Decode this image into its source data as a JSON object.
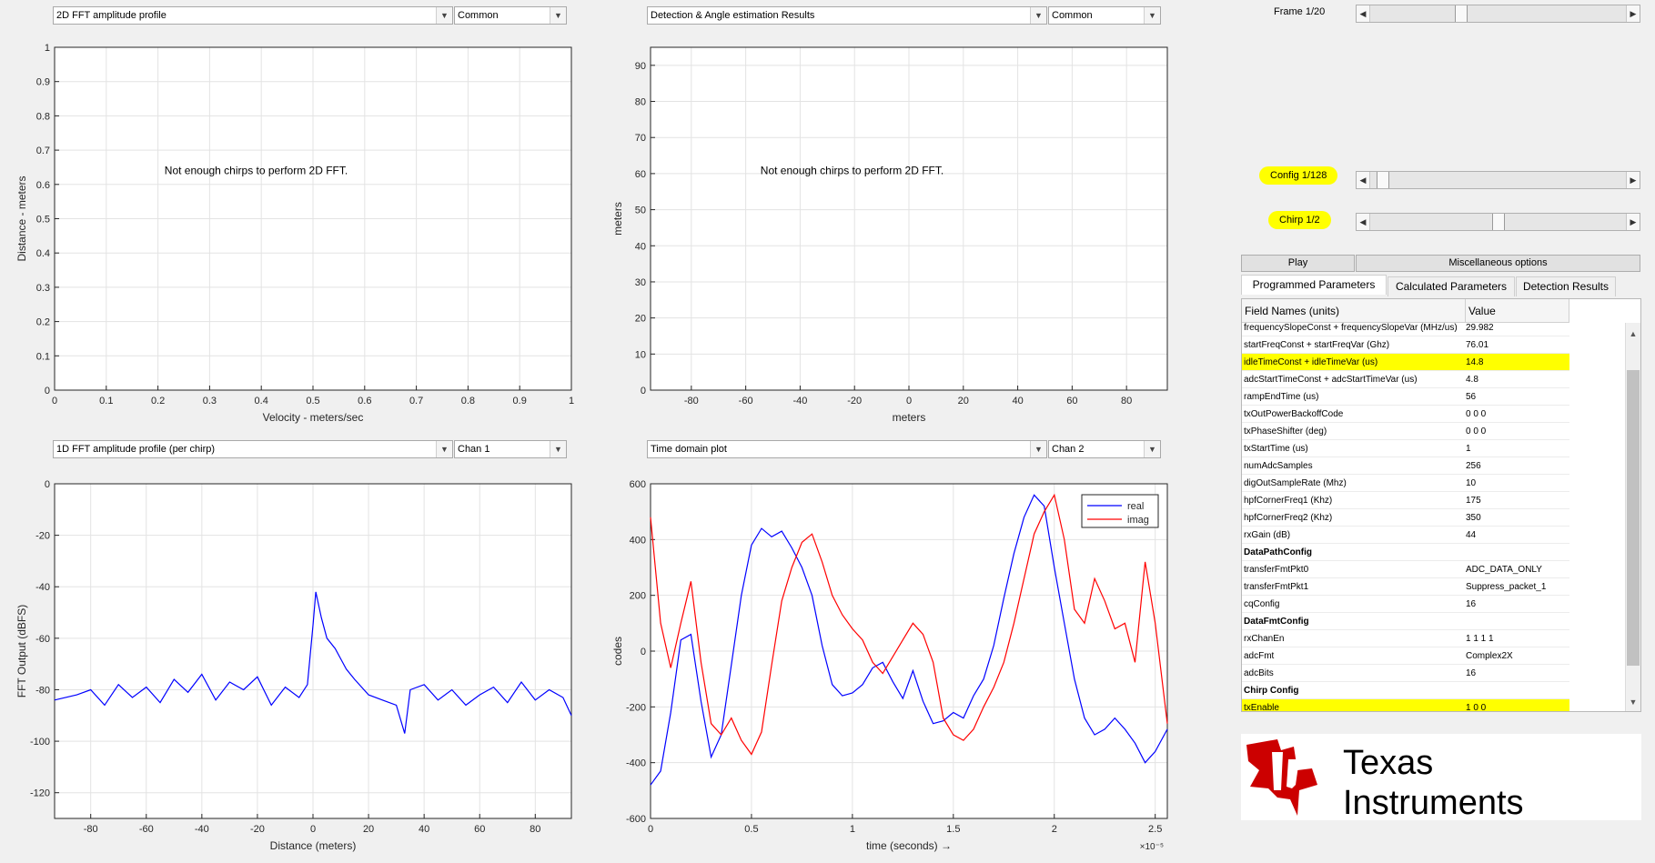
{
  "dropdowns": {
    "plot1": "2D FFT amplitude profile",
    "plot1_sub": "Common",
    "plot2": "Detection & Angle estimation Results",
    "plot2_sub": "Common",
    "plot3": "1D FFT amplitude profile (per chirp)",
    "plot3_sub": "Chan 1",
    "plot4": "Time domain plot",
    "plot4_sub": "Chan 2"
  },
  "sliders": {
    "frame_label": "Frame 1/20",
    "frame_value": 0.35,
    "config_label": "Config 1/128",
    "config_value": 0.03,
    "chirp_label": "Chirp 1/2",
    "chirp_value": 0.5
  },
  "buttons": {
    "play": "Play",
    "misc": "Miscellaneous options"
  },
  "tabs": [
    "Programmed Parameters",
    "Calculated Parameters",
    "Detection Results"
  ],
  "table": {
    "col1": "Field Names     (units)",
    "col2": "Value",
    "rows": [
      {
        "name": "frequencySlopeConst + frequencySlopeVar (MHz/us)",
        "value": "29.982",
        "section": false,
        "highlight": false
      },
      {
        "name": "startFreqConst + startFreqVar (Ghz)",
        "value": "76.01",
        "section": false,
        "highlight": false
      },
      {
        "name": "idleTimeConst + idleTimeVar (us)",
        "value": "14.8",
        "section": false,
        "highlight": true
      },
      {
        "name": "adcStartTimeConst + adcStartTimeVar (us)",
        "value": "4.8",
        "section": false,
        "highlight": false
      },
      {
        "name": "rampEndTime (us)",
        "value": "56",
        "section": false,
        "highlight": false
      },
      {
        "name": "txOutPowerBackoffCode",
        "value": "0 0 0",
        "section": false,
        "highlight": false
      },
      {
        "name": "txPhaseShifter (deg)",
        "value": "0 0 0",
        "section": false,
        "highlight": false
      },
      {
        "name": "txStartTime (us)",
        "value": "1",
        "section": false,
        "highlight": false
      },
      {
        "name": "numAdcSamples",
        "value": "256",
        "section": false,
        "highlight": false
      },
      {
        "name": "digOutSampleRate (Mhz)",
        "value": "10",
        "section": false,
        "highlight": false
      },
      {
        "name": "hpfCornerFreq1 (Khz)",
        "value": "175",
        "section": false,
        "highlight": false
      },
      {
        "name": "hpfCornerFreq2 (Khz)",
        "value": "350",
        "section": false,
        "highlight": false
      },
      {
        "name": "rxGain (dB)",
        "value": "44",
        "section": false,
        "highlight": false
      },
      {
        "name": "DataPathConfig",
        "value": "",
        "section": true,
        "highlight": false
      },
      {
        "name": "transferFmtPkt0",
        "value": "ADC_DATA_ONLY",
        "section": false,
        "highlight": false
      },
      {
        "name": "transferFmtPkt1",
        "value": "Suppress_packet_1",
        "section": false,
        "highlight": false
      },
      {
        "name": "cqConfig",
        "value": "16",
        "section": false,
        "highlight": false
      },
      {
        "name": "DataFmtConfig",
        "value": "",
        "section": true,
        "highlight": false
      },
      {
        "name": "rxChanEn",
        "value": "1 1 1 1",
        "section": false,
        "highlight": false
      },
      {
        "name": "adcFmt",
        "value": "Complex2X",
        "section": false,
        "highlight": false
      },
      {
        "name": "adcBits",
        "value": "16",
        "section": false,
        "highlight": false
      },
      {
        "name": "Chirp Config",
        "value": "",
        "section": true,
        "highlight": false
      },
      {
        "name": "txEnable",
        "value": "1 0 0",
        "section": false,
        "highlight": true
      }
    ]
  },
  "logo": {
    "text_line1": "Texas",
    "text_line2": "Instruments",
    "red": "#cc0000"
  },
  "colors": {
    "real": "#0000ff",
    "imag": "#ff0000",
    "fft": "#0000ff",
    "highlight": "#ffff00"
  },
  "chart_data": [
    {
      "type": "scatter",
      "title": "",
      "xlabel": "Velocity - meters/sec",
      "ylabel": "Distance - meters",
      "xlim": [
        0,
        1
      ],
      "ylim": [
        0,
        1
      ],
      "xticks": [
        "0",
        "0.1",
        "0.2",
        "0.3",
        "0.4",
        "0.5",
        "0.6",
        "0.7",
        "0.8",
        "0.9",
        "1"
      ],
      "yticks": [
        "0",
        "0.1",
        "0.2",
        "0.3",
        "0.4",
        "0.5",
        "0.6",
        "0.7",
        "0.8",
        "0.9",
        "1"
      ],
      "grid": true,
      "annotation": "Not enough chirps to perform 2D FFT.",
      "series": []
    },
    {
      "type": "scatter",
      "title": "",
      "xlabel": "meters",
      "ylabel": "meters",
      "xlim": [
        -95,
        95
      ],
      "ylim": [
        0,
        95
      ],
      "xticks": [
        "-80",
        "-60",
        "-40",
        "-20",
        "0",
        "20",
        "40",
        "60",
        "80"
      ],
      "yticks": [
        "0",
        "10",
        "20",
        "30",
        "40",
        "50",
        "60",
        "70",
        "80",
        "90"
      ],
      "grid": true,
      "annotation": "Not enough chirps to perform 2D FFT.",
      "series": []
    },
    {
      "type": "line",
      "title": "",
      "xlabel": "Distance (meters)",
      "ylabel": "FFT Output (dBFS)",
      "xlim": [
        -93,
        93
      ],
      "ylim": [
        -130,
        0
      ],
      "xticks": [
        "-80",
        "-60",
        "-40",
        "-20",
        "0",
        "20",
        "40",
        "60",
        "80"
      ],
      "yticks": [
        "0",
        "-20",
        "-40",
        "-60",
        "-80",
        "-100",
        "-120"
      ],
      "grid": true,
      "series": [
        {
          "x": [
            -93,
            -85,
            -80,
            -75,
            -70,
            -65,
            -60,
            -55,
            -50,
            -45,
            -40,
            -35,
            -30,
            -25,
            -20,
            -15,
            -10,
            -5,
            -2,
            0,
            1,
            3,
            5,
            8,
            10,
            12,
            15,
            20,
            25,
            30,
            33,
            35,
            40,
            45,
            50,
            55,
            60,
            65,
            70,
            75,
            80,
            85,
            90,
            93
          ],
          "values": [
            -84,
            -82,
            -80,
            -86,
            -78,
            -83,
            -79,
            -85,
            -76,
            -81,
            -74,
            -84,
            -77,
            -80,
            -75,
            -86,
            -79,
            -83,
            -78,
            -55,
            -42,
            -52,
            -60,
            -64,
            -68,
            -72,
            -76,
            -82,
            -84,
            -86,
            -97,
            -80,
            -78,
            -84,
            -80,
            -86,
            -82,
            -79,
            -85,
            -77,
            -84,
            -80,
            -83,
            -90
          ]
        }
      ]
    },
    {
      "type": "line",
      "title": "",
      "xlabel": "time  (seconds) →",
      "ylabel": "codes",
      "xlim": [
        0,
        2.56
      ],
      "x_exponent": "×10⁻⁵",
      "ylim": [
        -600,
        600
      ],
      "xticks": [
        "0",
        "0.5",
        "1",
        "1.5",
        "2",
        "2.5"
      ],
      "yticks": [
        "600",
        "400",
        "200",
        "0",
        "-200",
        "-400",
        "-600"
      ],
      "grid": true,
      "legend": "top-right",
      "series": [
        {
          "name": "real",
          "x": [
            0,
            0.05,
            0.1,
            0.15,
            0.2,
            0.25,
            0.3,
            0.35,
            0.4,
            0.45,
            0.5,
            0.55,
            0.6,
            0.65,
            0.7,
            0.75,
            0.8,
            0.85,
            0.9,
            0.95,
            1.0,
            1.05,
            1.1,
            1.15,
            1.2,
            1.25,
            1.3,
            1.35,
            1.4,
            1.45,
            1.5,
            1.55,
            1.6,
            1.65,
            1.7,
            1.75,
            1.8,
            1.85,
            1.9,
            1.95,
            2.0,
            2.05,
            2.1,
            2.15,
            2.2,
            2.25,
            2.3,
            2.35,
            2.4,
            2.45,
            2.5,
            2.56
          ],
          "values": [
            -480,
            -430,
            -220,
            40,
            60,
            -180,
            -380,
            -300,
            -50,
            200,
            380,
            440,
            410,
            430,
            370,
            300,
            200,
            20,
            -120,
            -160,
            -150,
            -120,
            -60,
            -40,
            -110,
            -170,
            -70,
            -180,
            -260,
            -250,
            -220,
            -240,
            -160,
            -100,
            20,
            190,
            350,
            480,
            560,
            520,
            300,
            100,
            -100,
            -240,
            -300,
            -280,
            -240,
            -280,
            -330,
            -400,
            -360,
            -280
          ]
        },
        {
          "name": "imag",
          "x": [
            0,
            0.05,
            0.1,
            0.15,
            0.2,
            0.25,
            0.3,
            0.35,
            0.4,
            0.45,
            0.5,
            0.55,
            0.6,
            0.65,
            0.7,
            0.75,
            0.8,
            0.85,
            0.9,
            0.95,
            1.0,
            1.05,
            1.1,
            1.15,
            1.2,
            1.25,
            1.3,
            1.35,
            1.4,
            1.45,
            1.5,
            1.55,
            1.6,
            1.65,
            1.7,
            1.75,
            1.8,
            1.85,
            1.9,
            1.95,
            2.0,
            2.05,
            2.1,
            2.15,
            2.2,
            2.25,
            2.3,
            2.35,
            2.4,
            2.45,
            2.5,
            2.56
          ],
          "values": [
            480,
            100,
            -60,
            100,
            250,
            -40,
            -260,
            -300,
            -240,
            -320,
            -370,
            -290,
            -50,
            180,
            300,
            390,
            420,
            320,
            200,
            130,
            80,
            40,
            -40,
            -80,
            -20,
            40,
            100,
            60,
            -40,
            -240,
            -300,
            -320,
            -280,
            -200,
            -130,
            -40,
            100,
            260,
            420,
            500,
            560,
            400,
            150,
            100,
            260,
            180,
            80,
            100,
            -40,
            320,
            100,
            -260
          ]
        }
      ]
    }
  ]
}
